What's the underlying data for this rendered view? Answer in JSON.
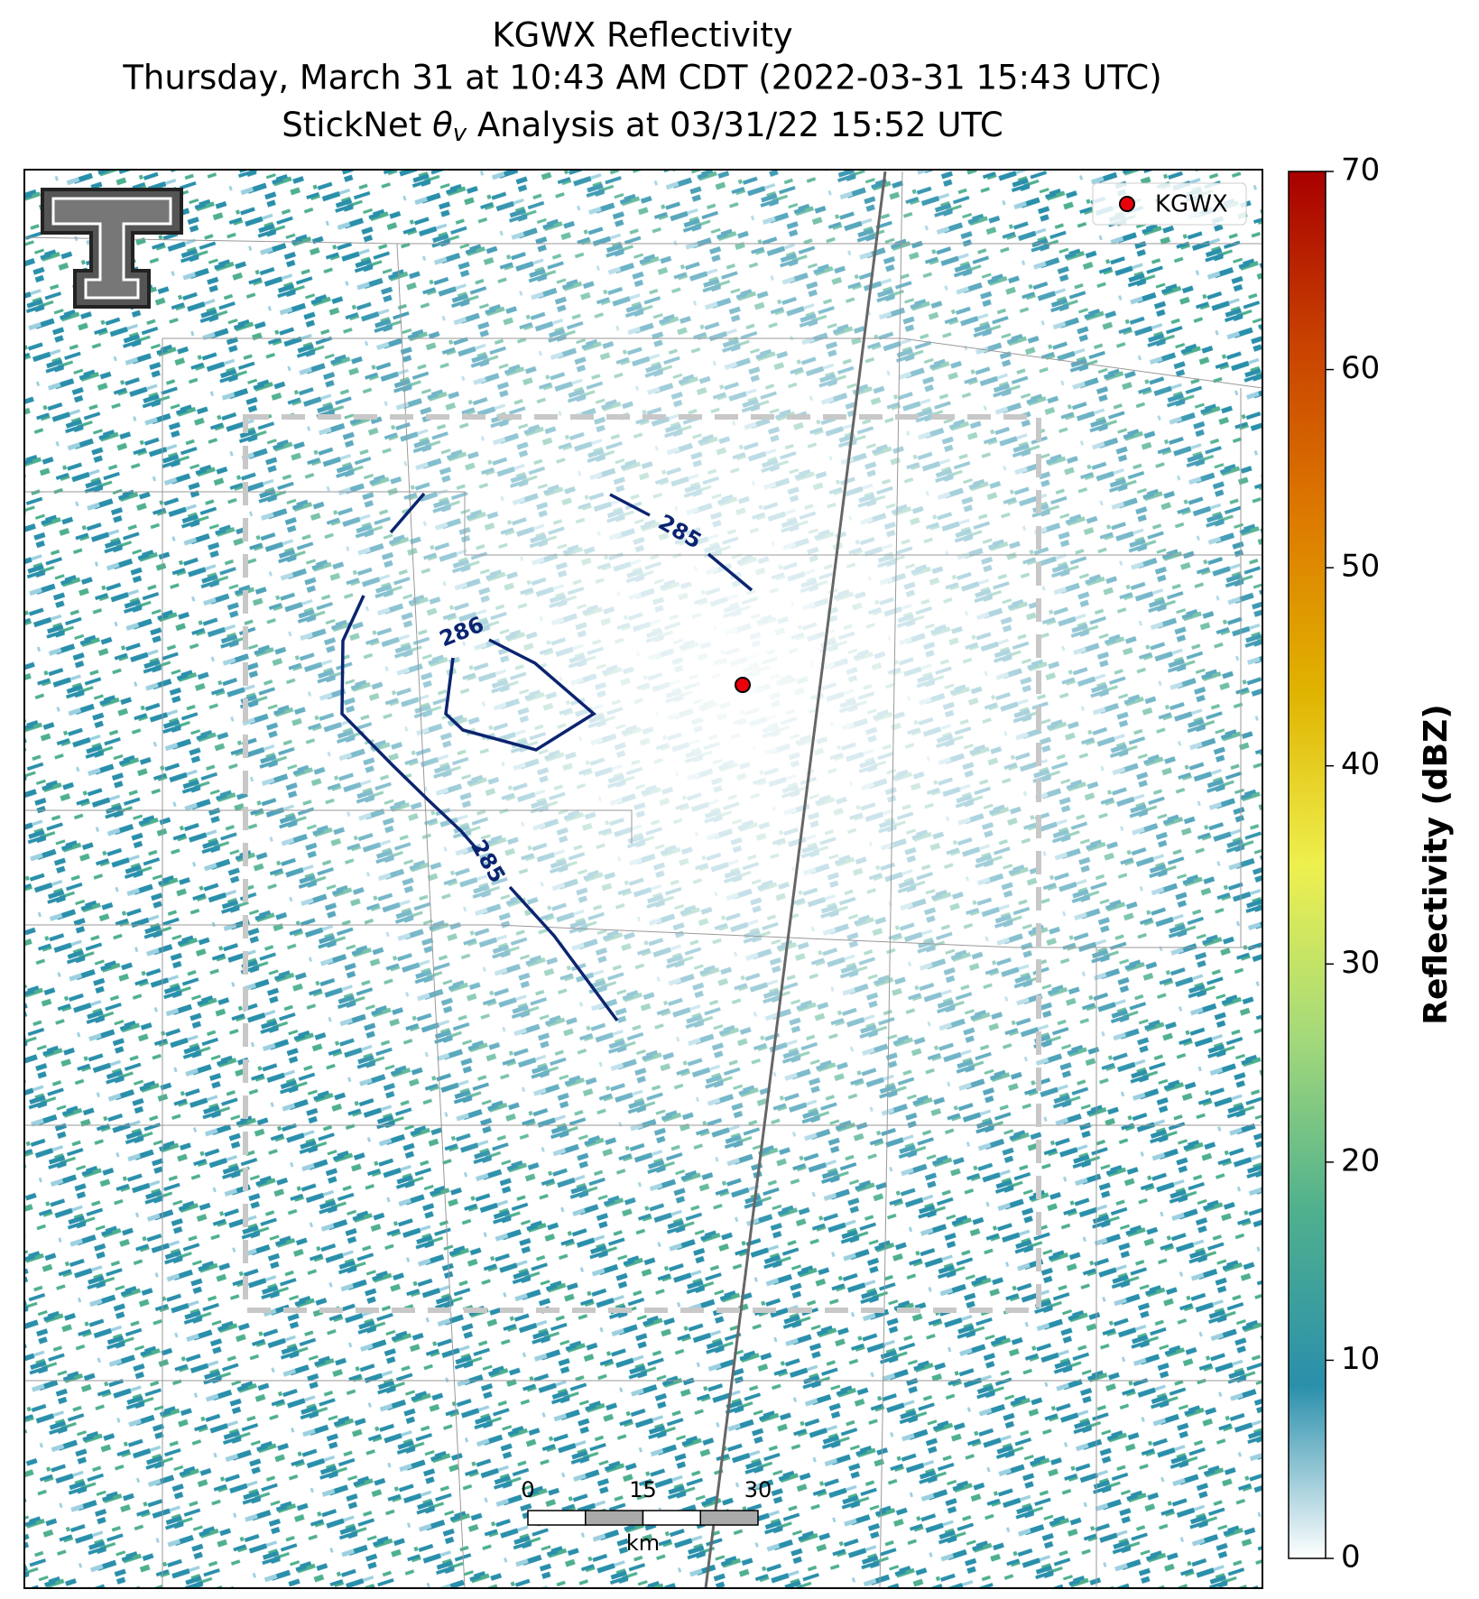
{
  "chart_data": {
    "type": "radar-map",
    "title_lines": [
      "KGWX Reflectivity",
      "Thursday, March 31 at 10:43 AM CDT (2022-03-31 15:43 UTC)"
    ],
    "subtitle": {
      "prefix": "StickNet ",
      "symbol": "θ",
      "subscript": "v",
      "suffix": " Analysis at 03/31/22 15:52 UTC"
    },
    "legend": {
      "label": "KGWX",
      "color": "#e8000b",
      "corner": "upper right"
    },
    "contours": [
      {
        "level": 285,
        "color": "#0b2470"
      },
      {
        "level": 285,
        "color": "#0b2470"
      },
      {
        "level": 286,
        "color": "#0b2470"
      },
      {
        "level": 285,
        "color": "#0b2470"
      }
    ],
    "scalebar": {
      "ticks": [
        0,
        15,
        30
      ],
      "unit": "km"
    },
    "colorbar": {
      "label": "Reflectivity (dBZ)",
      "ylim": [
        0,
        70
      ],
      "yticks": [
        0,
        10,
        20,
        30,
        40,
        50,
        60,
        70
      ],
      "colors": [
        "#ffffff",
        "#2a8fab",
        "#4fb08e",
        "#a3d97a",
        "#eef04e",
        "#e0b300",
        "#dd7a00",
        "#c84200",
        "#a80000"
      ]
    }
  }
}
